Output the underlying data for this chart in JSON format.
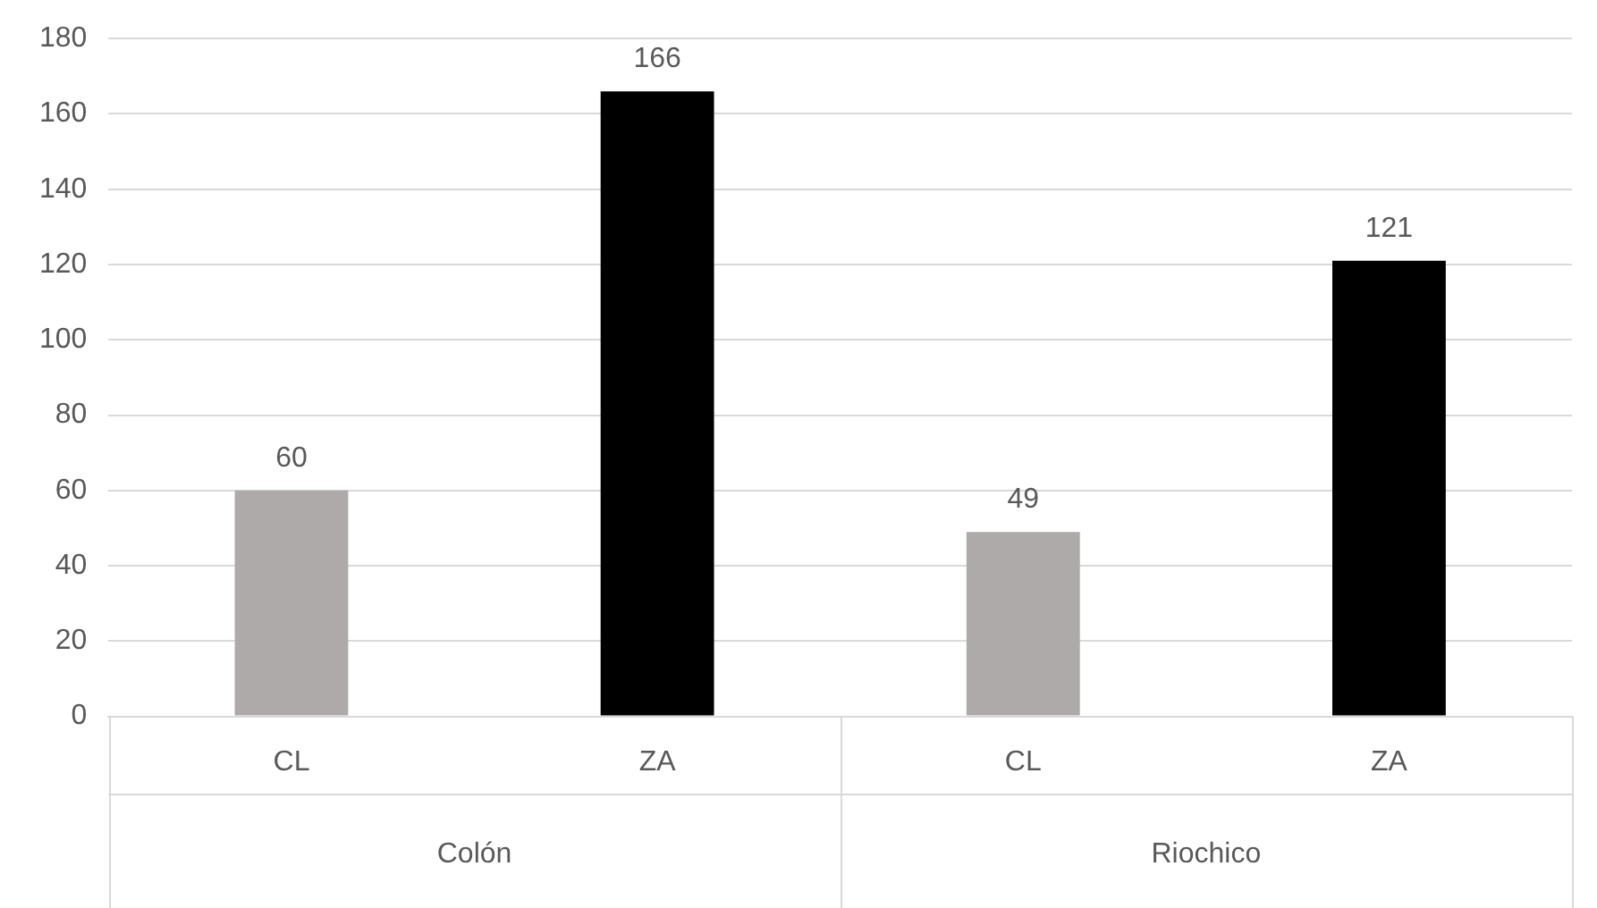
{
  "chart_data": {
    "type": "bar",
    "categories": [
      "CL",
      "ZA",
      "CL",
      "ZA"
    ],
    "values": [
      60,
      166,
      49,
      121
    ],
    "colors": [
      "#aeaaaa",
      "#000000",
      "#aeaaaa",
      "#000000"
    ],
    "ylim": [
      0,
      180
    ],
    "yticks": [
      0,
      20,
      40,
      60,
      80,
      100,
      120,
      140,
      160,
      180
    ],
    "grid": "y",
    "legend": false,
    "data_labels": true,
    "annotations": [
      "Colón",
      "Riochico"
    ]
  }
}
